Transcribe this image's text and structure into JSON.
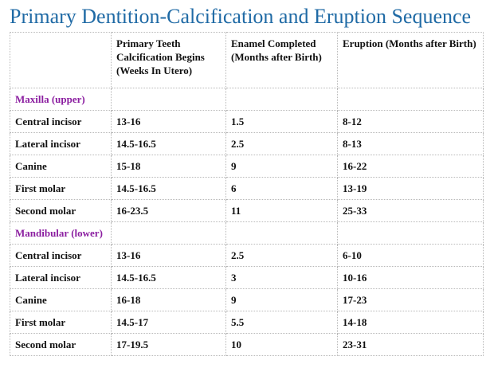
{
  "title": "Primary Dentition-Calcification and Eruption Sequence",
  "table": {
    "headers": [
      "",
      "Primary Teeth Calcification Begins (Weeks In Utero)",
      "Enamel Completed (Months after Birth)",
      "Eruption (Months after Birth)"
    ],
    "sections": [
      {
        "label": "Maxilla (upper)",
        "rows": [
          [
            "Central incisor",
            "13-16",
            "1.5",
            "8-12"
          ],
          [
            "Lateral incisor",
            "14.5-16.5",
            "2.5",
            "8-13"
          ],
          [
            "Canine",
            "15-18",
            "9",
            "16-22"
          ],
          [
            "First molar",
            "14.5-16.5",
            "6",
            "13-19"
          ],
          [
            "Second molar",
            "16-23.5",
            "11",
            "25-33"
          ]
        ]
      },
      {
        "label": "Mandibular (lower)",
        "rows": [
          [
            "Central incisor",
            "13-16",
            "2.5",
            "6-10"
          ],
          [
            "Lateral incisor",
            "14.5-16.5",
            "3",
            "10-16"
          ],
          [
            "Canine",
            "16-18",
            "9",
            "17-23"
          ],
          [
            "First molar",
            "14.5-17",
            "5.5",
            "14-18"
          ],
          [
            "Second molar",
            "17-19.5",
            "10",
            "23-31"
          ]
        ]
      }
    ]
  },
  "colors": {
    "title": "#1f6aa5",
    "section_label": "#8b1ea0",
    "text": "#111111",
    "grid": "#b8b8b8"
  }
}
